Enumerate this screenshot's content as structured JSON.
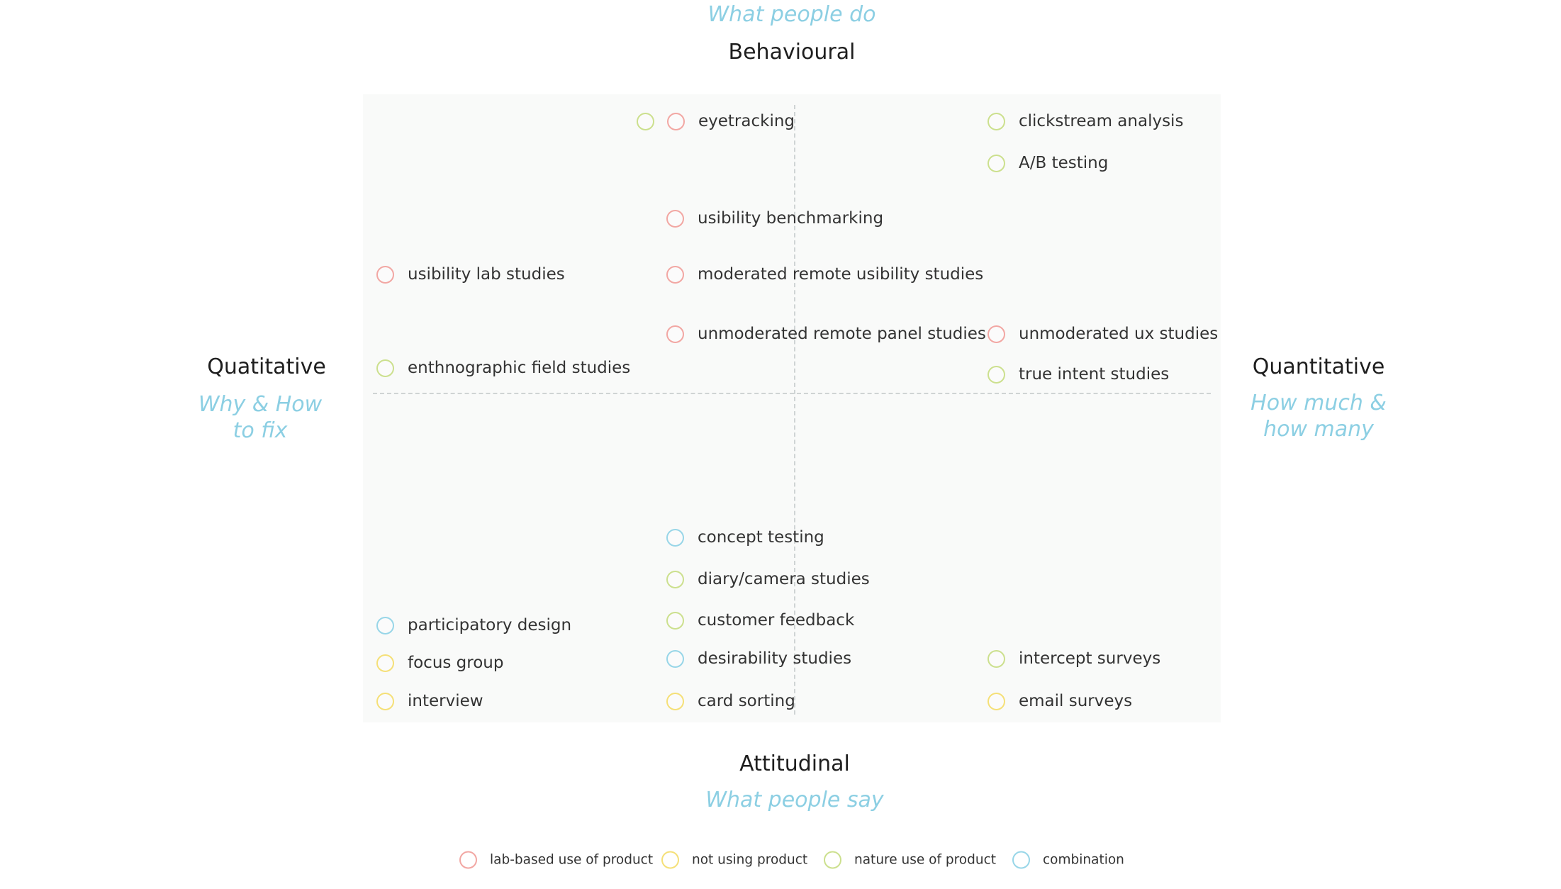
{
  "axes": {
    "top": {
      "title": "Behavioural",
      "subtitle": "What people do"
    },
    "bottom": {
      "title": "Attitudinal",
      "subtitle": "What people say"
    },
    "left": {
      "title": "Quatitative",
      "subtitle_lines": [
        "Why & How",
        "to fix"
      ]
    },
    "right": {
      "title": "Quantitative",
      "subtitle_lines": [
        "How much &",
        "how many"
      ]
    }
  },
  "colors": {
    "lab": "#f2a7a3",
    "not_using": "#f5e078",
    "natural": "#cce08e",
    "combination": "#98d6e8"
  },
  "methods": [
    {
      "label": "eyetracking",
      "type": "lab",
      "extra_type": "natural"
    },
    {
      "label": "clickstream analysis",
      "type": "natural"
    },
    {
      "label": "A/B testing",
      "type": "natural"
    },
    {
      "label": "usibility benchmarking",
      "type": "lab"
    },
    {
      "label": "usibility lab studies",
      "type": "lab"
    },
    {
      "label": "moderated remote usibility studies",
      "type": "lab"
    },
    {
      "label": "unmoderated remote panel studies",
      "type": "lab"
    },
    {
      "label": "unmoderated ux studies",
      "type": "lab"
    },
    {
      "label": "enthnographic field studies",
      "type": "natural"
    },
    {
      "label": "true intent studies",
      "type": "natural"
    },
    {
      "label": "concept testing",
      "type": "combination"
    },
    {
      "label": "diary/camera studies",
      "type": "natural"
    },
    {
      "label": "customer feedback",
      "type": "natural"
    },
    {
      "label": "participatory design",
      "type": "combination"
    },
    {
      "label": "focus group",
      "type": "not_using"
    },
    {
      "label": "desirability studies",
      "type": "combination"
    },
    {
      "label": "intercept surveys",
      "type": "natural"
    },
    {
      "label": "interview",
      "type": "not_using"
    },
    {
      "label": "card sorting",
      "type": "not_using"
    },
    {
      "label": "email surveys",
      "type": "not_using"
    }
  ],
  "legend": [
    {
      "label": "lab-based use of product",
      "type": "lab"
    },
    {
      "label": "not using product",
      "type": "not_using"
    },
    {
      "label": "nature use of product",
      "type": "natural"
    },
    {
      "label": "combination",
      "type": "combination"
    }
  ]
}
